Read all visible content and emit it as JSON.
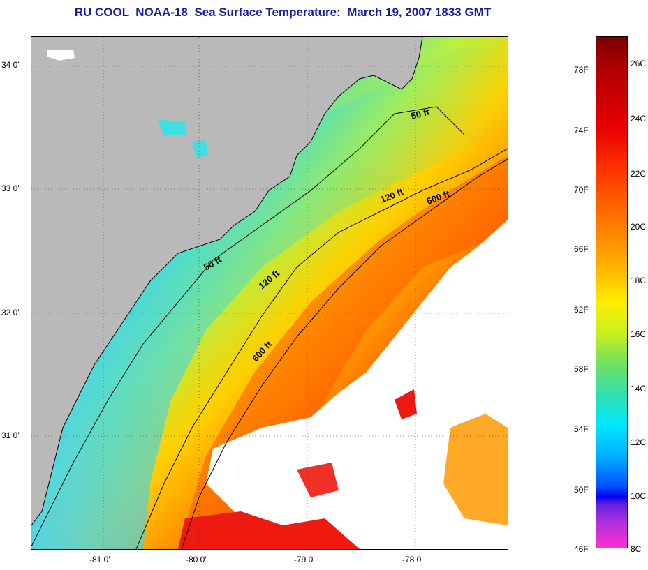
{
  "title": "RU COOL  NOAA-18  Sea Surface Temperature:  March 19, 2007 1833 GMT",
  "map": {
    "lat_labels": [
      "34 0'",
      "33 0'",
      "32 0'",
      "31 0'"
    ],
    "lon_labels": [
      "-81 0'",
      "-80 0'",
      "-79 0'",
      "-78 0'"
    ],
    "contours": [
      {
        "label": "50 ft"
      },
      {
        "label": "50 ft"
      },
      {
        "label": "120 ft"
      },
      {
        "label": "120 ft"
      },
      {
        "label": "600 ft"
      },
      {
        "label": "600 ft"
      }
    ],
    "colors": {
      "land": "#b9b9b9",
      "clouds": "#ffffff",
      "cold": "#1a8cff",
      "cool": "#30e0d0",
      "mild": "#e8f020",
      "warm": "#ff8800",
      "hot": "#ee1010"
    }
  },
  "colorbar": {
    "fahrenheit": [
      "78F",
      "74F",
      "70F",
      "66F",
      "62F",
      "58F",
      "54F",
      "50F",
      "46F"
    ],
    "celsius": [
      "26C",
      "24C",
      "22C",
      "20C",
      "18C",
      "16C",
      "14C",
      "12C",
      "10C",
      "8C"
    ]
  }
}
